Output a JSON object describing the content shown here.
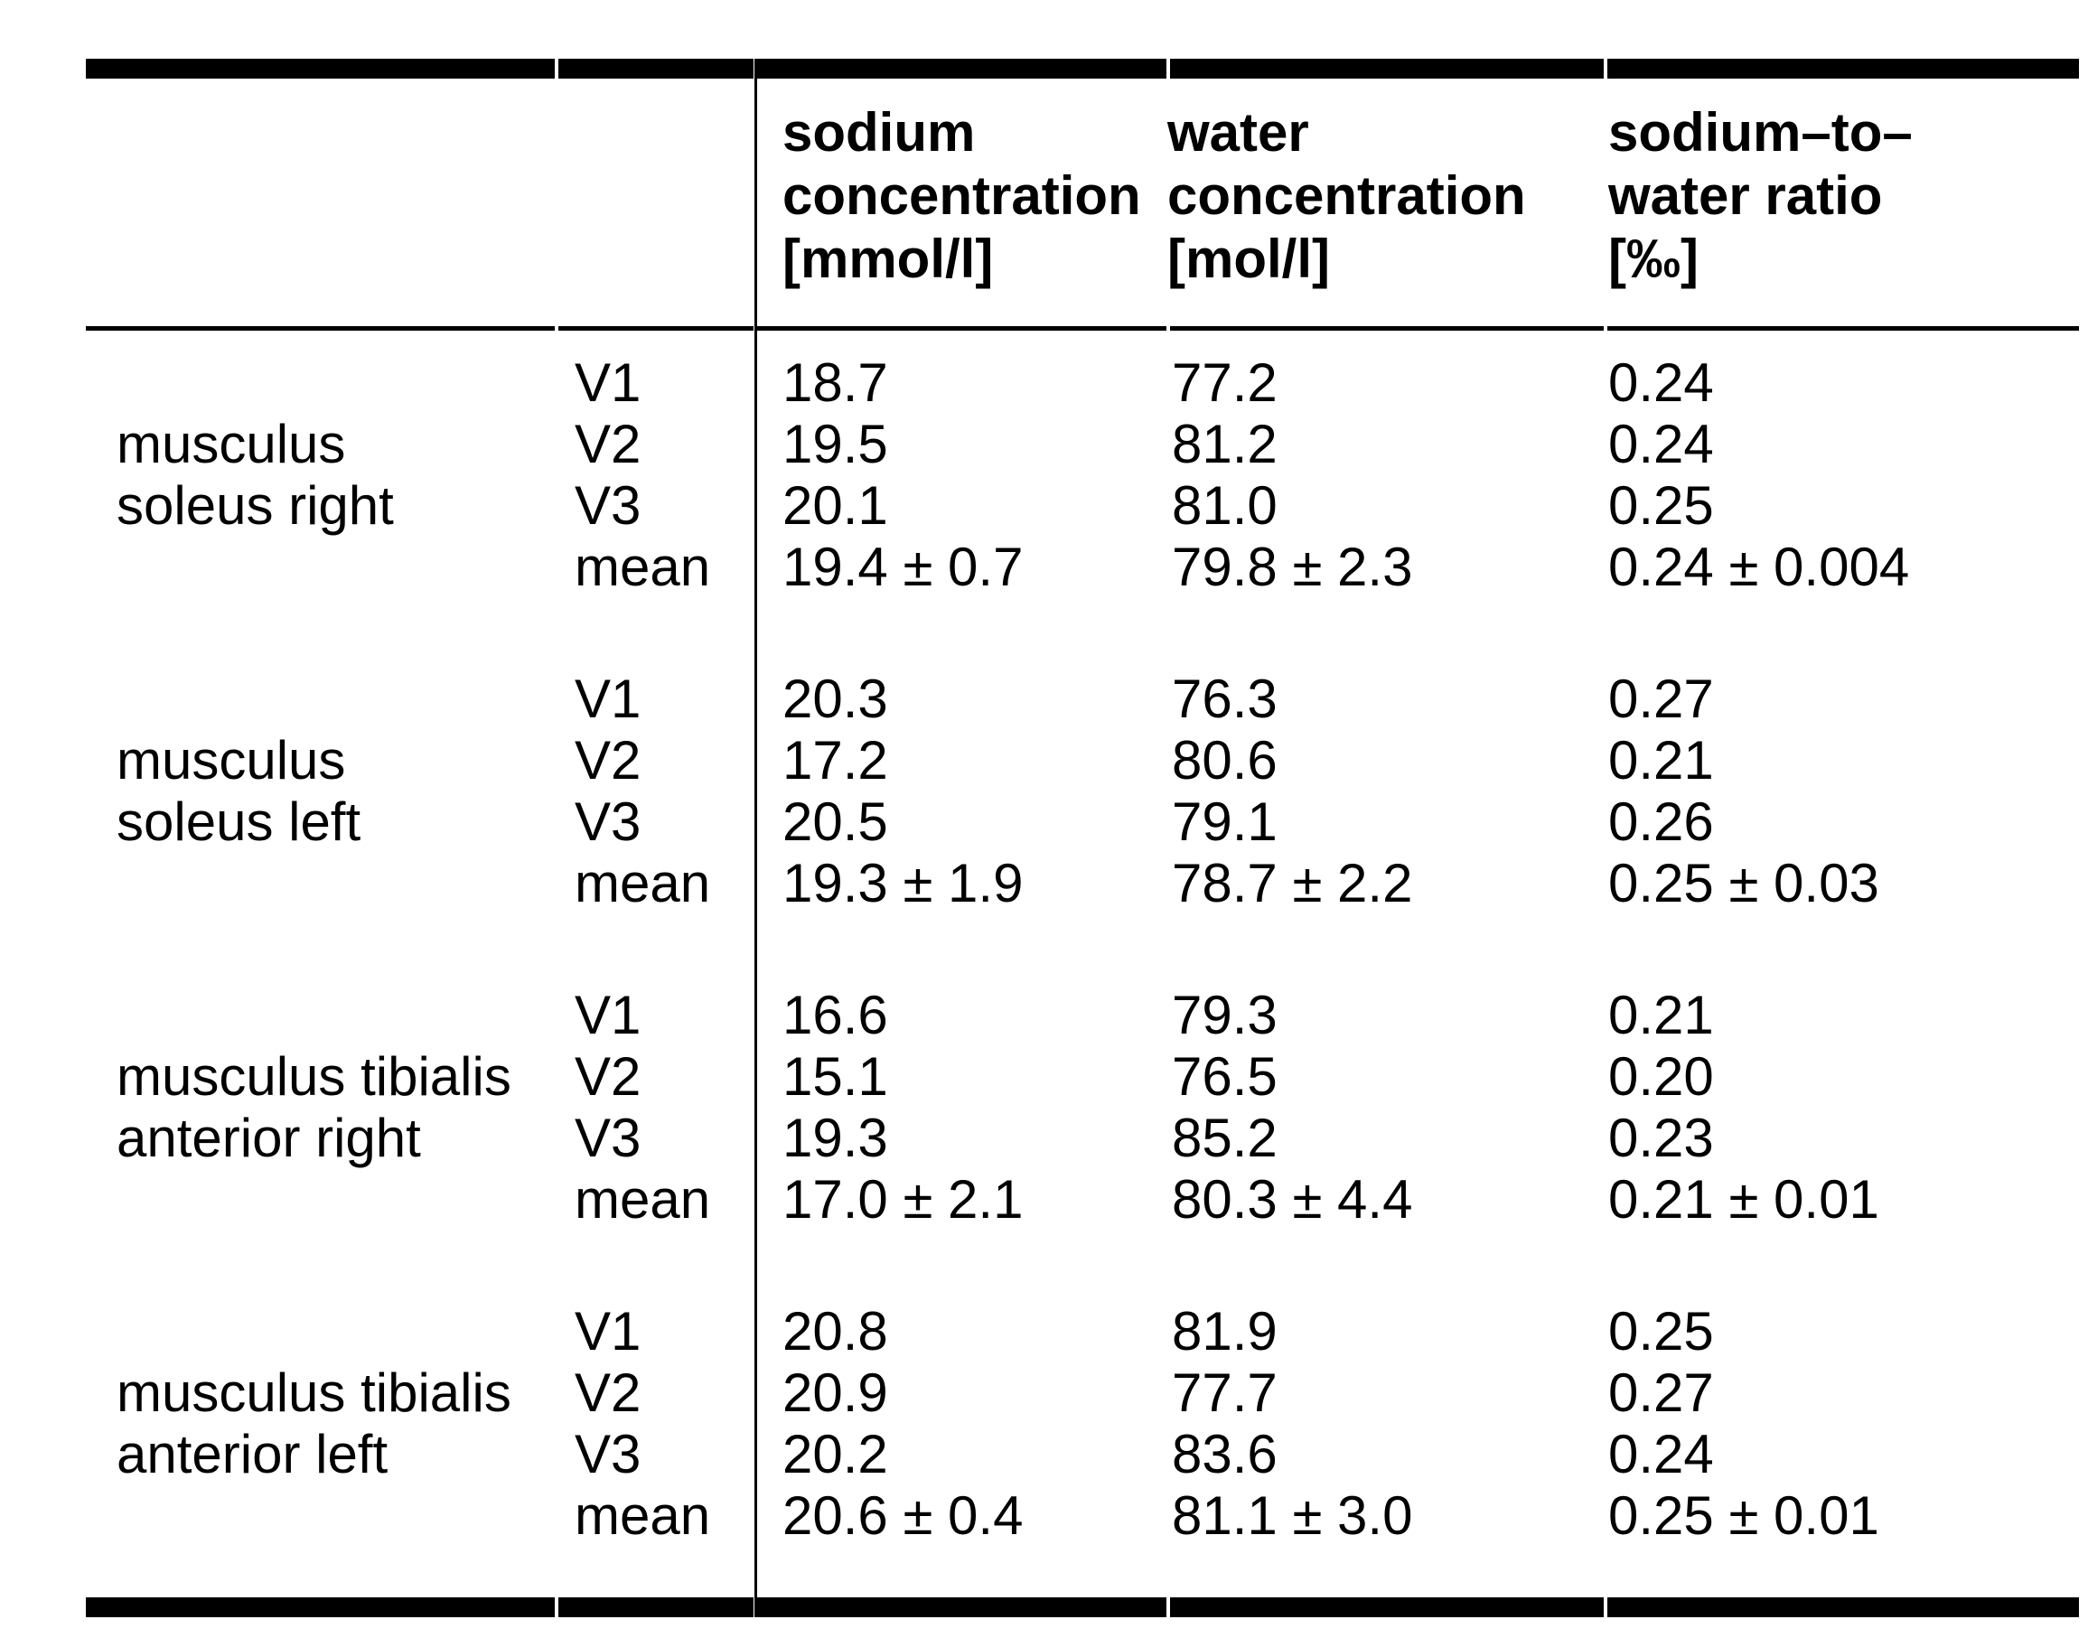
{
  "table": {
    "headers": {
      "sodium": [
        "sodium",
        "concentration",
        "[mmol/l]"
      ],
      "water": [
        "water",
        "concentration",
        "[mol/l]"
      ],
      "ratio": [
        "sodium–to–",
        "water ratio",
        "[‰]"
      ]
    },
    "row_labels": [
      "V1",
      "V2",
      "V3",
      "mean"
    ],
    "blocks": [
      {
        "muscle": [
          "musculus",
          "soleus right"
        ],
        "rows": [
          {
            "visit": "V1",
            "sodium": "18.7",
            "water": "77.2",
            "ratio": "0.24"
          },
          {
            "visit": "V2",
            "sodium": "19.5",
            "water": "81.2",
            "ratio": "0.24"
          },
          {
            "visit": "V3",
            "sodium": "20.1",
            "water": "81.0",
            "ratio": "0.25"
          },
          {
            "visit": "mean",
            "sodium": "19.4 ± 0.7",
            "water": "79.8 ± 2.3",
            "ratio": "0.24 ± 0.004"
          }
        ]
      },
      {
        "muscle": [
          "musculus",
          "soleus left"
        ],
        "rows": [
          {
            "visit": "V1",
            "sodium": "20.3",
            "water": "76.3",
            "ratio": "0.27"
          },
          {
            "visit": "V2",
            "sodium": "17.2",
            "water": "80.6",
            "ratio": "0.21"
          },
          {
            "visit": "V3",
            "sodium": "20.5",
            "water": "79.1",
            "ratio": "0.26"
          },
          {
            "visit": "mean",
            "sodium": "19.3 ± 1.9",
            "water": "78.7 ± 2.2",
            "ratio": "0.25 ± 0.03"
          }
        ]
      },
      {
        "muscle": [
          "musculus tibialis",
          "anterior right"
        ],
        "rows": [
          {
            "visit": "V1",
            "sodium": "16.6",
            "water": "79.3",
            "ratio": "0.21"
          },
          {
            "visit": "V2",
            "sodium": "15.1",
            "water": "76.5",
            "ratio": "0.20"
          },
          {
            "visit": "V3",
            "sodium": "19.3",
            "water": "85.2",
            "ratio": "0.23"
          },
          {
            "visit": "mean",
            "sodium": "17.0 ± 2.1",
            "water": "80.3 ± 4.4",
            "ratio": "0.21 ± 0.01"
          }
        ]
      },
      {
        "muscle": [
          "musculus tibialis",
          "anterior left"
        ],
        "rows": [
          {
            "visit": "V1",
            "sodium": "20.8",
            "water": "81.9",
            "ratio": "0.25"
          },
          {
            "visit": "V2",
            "sodium": "20.9",
            "water": "77.7",
            "ratio": "0.27"
          },
          {
            "visit": "V3",
            "sodium": "20.2",
            "water": "83.6",
            "ratio": "0.24"
          },
          {
            "visit": "mean",
            "sodium": "20.6 ± 0.4",
            "water": "81.1 ± 3.0",
            "ratio": "0.25 ± 0.01"
          }
        ]
      }
    ]
  }
}
